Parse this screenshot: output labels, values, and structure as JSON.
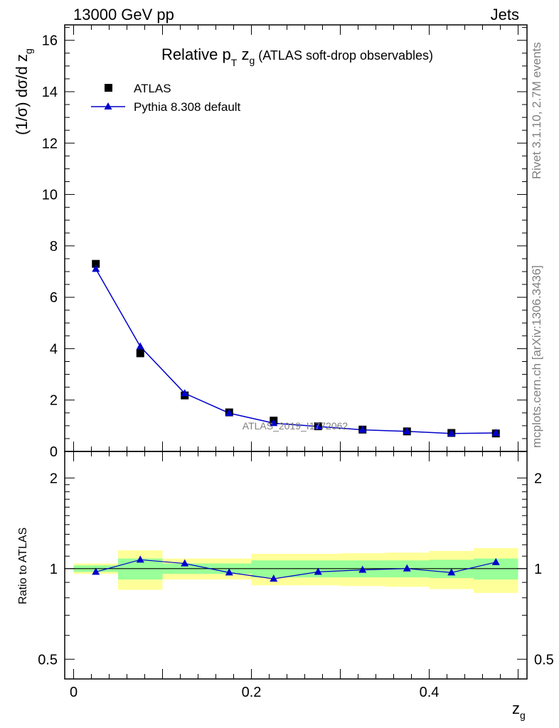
{
  "header": {
    "left": "13000 GeV pp",
    "right": "Jets"
  },
  "plot": {
    "title_main": "Relative p",
    "title_sub_T": "T",
    "title_zg": " z",
    "title_sub_g": "g",
    "title_rest": " (ATLAS soft-drop observables)",
    "ylabel_main": "(1/σ) dσ/d z",
    "ylabel_sub": "g",
    "watermark": "ATLAS_2019_I1772062"
  },
  "ratio": {
    "ylabel": "Ratio to ATLAS"
  },
  "xaxis": {
    "label": "z",
    "label_sub": "g"
  },
  "side_labels": {
    "rivet": "Rivet 3.1.10,  2.7M events",
    "mcplots": "mcplots.cern.ch [arXiv:1306.3436]"
  },
  "legend": {
    "atlas": "ATLAS",
    "pythia": "Pythia 8.308 default"
  },
  "colors": {
    "mc": "#0000cc",
    "band_outer": "#ffff99",
    "band_inner": "#99ff99",
    "data": "#000000",
    "side": "#808080"
  },
  "chart_data": [
    {
      "type": "scatter",
      "x_edges": [
        0.0,
        0.05,
        0.1,
        0.15,
        0.2,
        0.25,
        0.3,
        0.35,
        0.4,
        0.45,
        0.5
      ],
      "x": [
        0.025,
        0.075,
        0.125,
        0.175,
        0.225,
        0.275,
        0.325,
        0.375,
        0.425,
        0.475
      ],
      "series": [
        {
          "name": "ATLAS",
          "values": [
            7.3,
            3.82,
            2.18,
            1.52,
            1.2,
            0.98,
            0.85,
            0.78,
            0.72,
            0.7
          ]
        },
        {
          "name": "Pythia 8.308 default",
          "values": [
            7.1,
            4.08,
            2.26,
            1.49,
            1.1,
            0.97,
            0.84,
            0.78,
            0.7,
            0.72
          ]
        }
      ],
      "xlim": [
        -0.01,
        0.51
      ],
      "ylim": [
        0,
        16.6
      ],
      "yticks": [
        0,
        2,
        4,
        6,
        8,
        10,
        12,
        14,
        16
      ]
    },
    {
      "type": "line",
      "x": [
        0.025,
        0.075,
        0.125,
        0.175,
        0.225,
        0.275,
        0.325,
        0.375,
        0.425,
        0.475
      ],
      "series": [
        {
          "name": "Pythia 8.308 default",
          "values": [
            0.975,
            1.07,
            1.04,
            0.97,
            0.925,
            0.975,
            0.99,
            1.0,
            0.97,
            1.05
          ]
        }
      ],
      "bands": {
        "inner_lo": [
          0.975,
          0.92,
          0.96,
          0.96,
          0.935,
          0.935,
          0.935,
          0.935,
          0.93,
          0.92
        ],
        "inner_hi": [
          1.025,
          1.08,
          1.04,
          1.04,
          1.065,
          1.065,
          1.065,
          1.065,
          1.07,
          1.08
        ],
        "outer_lo": [
          0.96,
          0.85,
          0.92,
          0.92,
          0.88,
          0.88,
          0.875,
          0.87,
          0.855,
          0.83
        ],
        "outer_hi": [
          1.04,
          1.15,
          1.08,
          1.08,
          1.12,
          1.12,
          1.125,
          1.13,
          1.145,
          1.17
        ]
      },
      "ylim": [
        0.43,
        2.45
      ],
      "ytick_labels": [
        "0.5",
        "1",
        "2"
      ],
      "xtick_labels": [
        "0",
        "0.2",
        "0.4"
      ]
    }
  ]
}
